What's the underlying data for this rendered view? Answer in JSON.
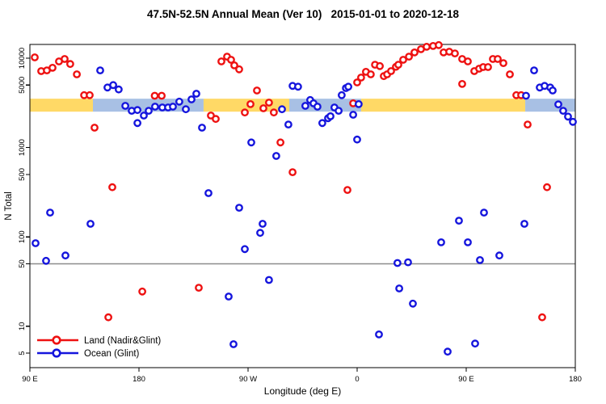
{
  "title": "47.5N-52.5N Annual Mean (Ver 10)   2015-01-01 to 2020-12-18",
  "colors": {
    "land": "#ee1111",
    "ocean": "#1515dd",
    "band_land": "#FFD966",
    "band_ocean": "#A8C0E4",
    "ref_line": "#8c8c8c",
    "axis": "#000000",
    "point_fill": "#ffffff"
  },
  "axes": {
    "x": {
      "title": "Longitude (deg E)",
      "range_deg": [
        0,
        450
      ],
      "ticks": [
        {
          "pos": 0,
          "label": "90 E"
        },
        {
          "pos": 90,
          "label": "180"
        },
        {
          "pos": 180,
          "label": "90 W"
        },
        {
          "pos": 270,
          "label": "0"
        },
        {
          "pos": 360,
          "label": "90 E"
        },
        {
          "pos": 450,
          "label": "180"
        }
      ]
    },
    "y": {
      "title": "N Total",
      "scale": "log",
      "ticks": [
        {
          "value": 10000,
          "label": "10000"
        },
        {
          "value": 5000,
          "label": "5000"
        },
        {
          "value": 1000,
          "label": "1000"
        },
        {
          "value": 500,
          "label": "500"
        },
        {
          "value": 100,
          "label": "100"
        },
        {
          "value": 50,
          "label": "50"
        },
        {
          "value": 10,
          "label": "10"
        },
        {
          "value": 5,
          "label": "5"
        }
      ]
    }
  },
  "ref_line": {
    "value": 50
  },
  "bands": {
    "value_range": [
      2520,
      3520
    ],
    "segments": [
      {
        "series": "land",
        "from": 0,
        "to": 52
      },
      {
        "series": "ocean",
        "from": 52,
        "to": 143.3
      },
      {
        "series": "land",
        "from": 143.3,
        "to": 214
      },
      {
        "series": "ocean",
        "from": 214,
        "to": 273.3
      },
      {
        "series": "land",
        "from": 273.3,
        "to": 408.7
      },
      {
        "series": "ocean",
        "from": 408.7,
        "to": 450
      }
    ]
  },
  "legend": {
    "entries": [
      {
        "series": "land",
        "label": "Land (Nadir&Glint)"
      },
      {
        "series": "ocean",
        "label": "Ocean (Glint)"
      }
    ]
  },
  "chart_data": {
    "type": "scatter",
    "title": "47.5N-52.5N Annual Mean (Ver 10)   2015-01-01 to 2020-12-18",
    "xlabel": "Longitude (deg E)",
    "ylabel": "N Total",
    "x_unit": "degrees east of 90E along wrapped axis (0-450)",
    "ylim": [
      3.4,
      14300
    ],
    "grid": false,
    "legend_position": "bottom-left",
    "series": [
      {
        "name": "Land (Nadir&Glint)",
        "key": "land",
        "color": "#ee1111",
        "points": [
          [
            4,
            10200
          ],
          [
            9.3,
            7160
          ],
          [
            14,
            7300
          ],
          [
            18.7,
            7800
          ],
          [
            24,
            9200
          ],
          [
            28.7,
            9800
          ],
          [
            33.3,
            8600
          ],
          [
            38.7,
            6600
          ],
          [
            44.7,
            3850
          ],
          [
            49.3,
            3850
          ],
          [
            53.3,
            1670
          ],
          [
            64.7,
            12.6
          ],
          [
            68,
            360
          ],
          [
            92.7,
            24.5
          ],
          [
            103,
            3800
          ],
          [
            108.7,
            3800
          ],
          [
            139.3,
            27
          ],
          [
            149.3,
            2280
          ],
          [
            153.3,
            2090
          ],
          [
            158,
            9200
          ],
          [
            162.7,
            10400
          ],
          [
            166,
            9600
          ],
          [
            168.7,
            8300
          ],
          [
            172.7,
            7500
          ],
          [
            177.3,
            2470
          ],
          [
            182,
            3060
          ],
          [
            187.3,
            4350
          ],
          [
            192.7,
            2750
          ],
          [
            197.3,
            3180
          ],
          [
            201.3,
            2470
          ],
          [
            206.7,
            1140
          ],
          [
            216.7,
            530
          ],
          [
            262,
            335
          ],
          [
            266.7,
            3120
          ],
          [
            270,
            5360
          ],
          [
            273.3,
            6070
          ],
          [
            277.3,
            7030
          ],
          [
            281.3,
            6600
          ],
          [
            284.7,
            8450
          ],
          [
            288.7,
            8150
          ],
          [
            292,
            6300
          ],
          [
            294.7,
            6600
          ],
          [
            298,
            7160
          ],
          [
            302,
            8000
          ],
          [
            304,
            8450
          ],
          [
            308,
            9600
          ],
          [
            312.7,
            10400
          ],
          [
            317.3,
            11600
          ],
          [
            322.7,
            12600
          ],
          [
            327.3,
            13400
          ],
          [
            332.7,
            13700
          ],
          [
            337.3,
            14000
          ],
          [
            341.3,
            11600
          ],
          [
            346,
            11800
          ],
          [
            350.7,
            11300
          ],
          [
            356.7,
            9800
          ],
          [
            356.7,
            5150
          ],
          [
            361.3,
            9200
          ],
          [
            366.7,
            7160
          ],
          [
            370.7,
            7630
          ],
          [
            374,
            7950
          ],
          [
            378,
            7950
          ],
          [
            382,
            9800
          ],
          [
            386,
            9800
          ],
          [
            390.7,
            8800
          ],
          [
            396,
            6600
          ],
          [
            401.3,
            3850
          ],
          [
            405.3,
            3850
          ],
          [
            410.7,
            1810
          ],
          [
            422.7,
            12.6
          ],
          [
            426.7,
            360
          ]
        ]
      },
      {
        "name": "Ocean (Glint)",
        "key": "ocean",
        "color": "#1515dd",
        "points": [
          [
            4.7,
            85
          ],
          [
            13.3,
            54
          ],
          [
            16.7,
            187
          ],
          [
            29.3,
            62
          ],
          [
            50,
            140
          ],
          [
            58,
            7300
          ],
          [
            64,
            4700
          ],
          [
            68.7,
            5000
          ],
          [
            73.3,
            4470
          ],
          [
            78.7,
            2930
          ],
          [
            84,
            2580
          ],
          [
            88.7,
            2630
          ],
          [
            88.7,
            1880
          ],
          [
            94,
            2280
          ],
          [
            98,
            2580
          ],
          [
            103.3,
            2870
          ],
          [
            109.3,
            2810
          ],
          [
            114,
            2810
          ],
          [
            118,
            2870
          ],
          [
            123.3,
            3260
          ],
          [
            128.7,
            2680
          ],
          [
            133.3,
            3460
          ],
          [
            137.3,
            4000
          ],
          [
            142,
            1670
          ],
          [
            147.3,
            309
          ],
          [
            164,
            21.5
          ],
          [
            168,
            6.3
          ],
          [
            172.7,
            212
          ],
          [
            177.3,
            73
          ],
          [
            182.7,
            1140
          ],
          [
            190,
            111
          ],
          [
            192,
            140
          ],
          [
            197.3,
            33
          ],
          [
            203.3,
            805
          ],
          [
            208,
            2680
          ],
          [
            213.3,
            1810
          ],
          [
            216.7,
            4900
          ],
          [
            221.3,
            4800
          ],
          [
            227.3,
            2930
          ],
          [
            231.3,
            3400
          ],
          [
            234,
            3120
          ],
          [
            237.3,
            2870
          ],
          [
            241.3,
            1880
          ],
          [
            246,
            2130
          ],
          [
            248,
            2240
          ],
          [
            251.3,
            2810
          ],
          [
            254.7,
            2580
          ],
          [
            257.3,
            3850
          ],
          [
            260.7,
            4630
          ],
          [
            262.7,
            4800
          ],
          [
            266.7,
            2330
          ],
          [
            270,
            1230
          ],
          [
            271.3,
            3060
          ],
          [
            288,
            8.1
          ],
          [
            303.3,
            51
          ],
          [
            304.7,
            26.5
          ],
          [
            312,
            52
          ],
          [
            316,
            17.9
          ],
          [
            339.3,
            87
          ],
          [
            344.7,
            5.2
          ],
          [
            354,
            152
          ],
          [
            361.3,
            87
          ],
          [
            367.3,
            6.4
          ],
          [
            371.3,
            55
          ],
          [
            374.7,
            187
          ],
          [
            387.3,
            62
          ],
          [
            408,
            140
          ],
          [
            409.3,
            3800
          ],
          [
            416,
            7300
          ],
          [
            420.7,
            4700
          ],
          [
            424.7,
            4900
          ],
          [
            429.3,
            4700
          ],
          [
            431.3,
            4350
          ],
          [
            436,
            3040
          ],
          [
            440,
            2580
          ],
          [
            444,
            2220
          ],
          [
            448,
            1940
          ]
        ]
      }
    ]
  }
}
